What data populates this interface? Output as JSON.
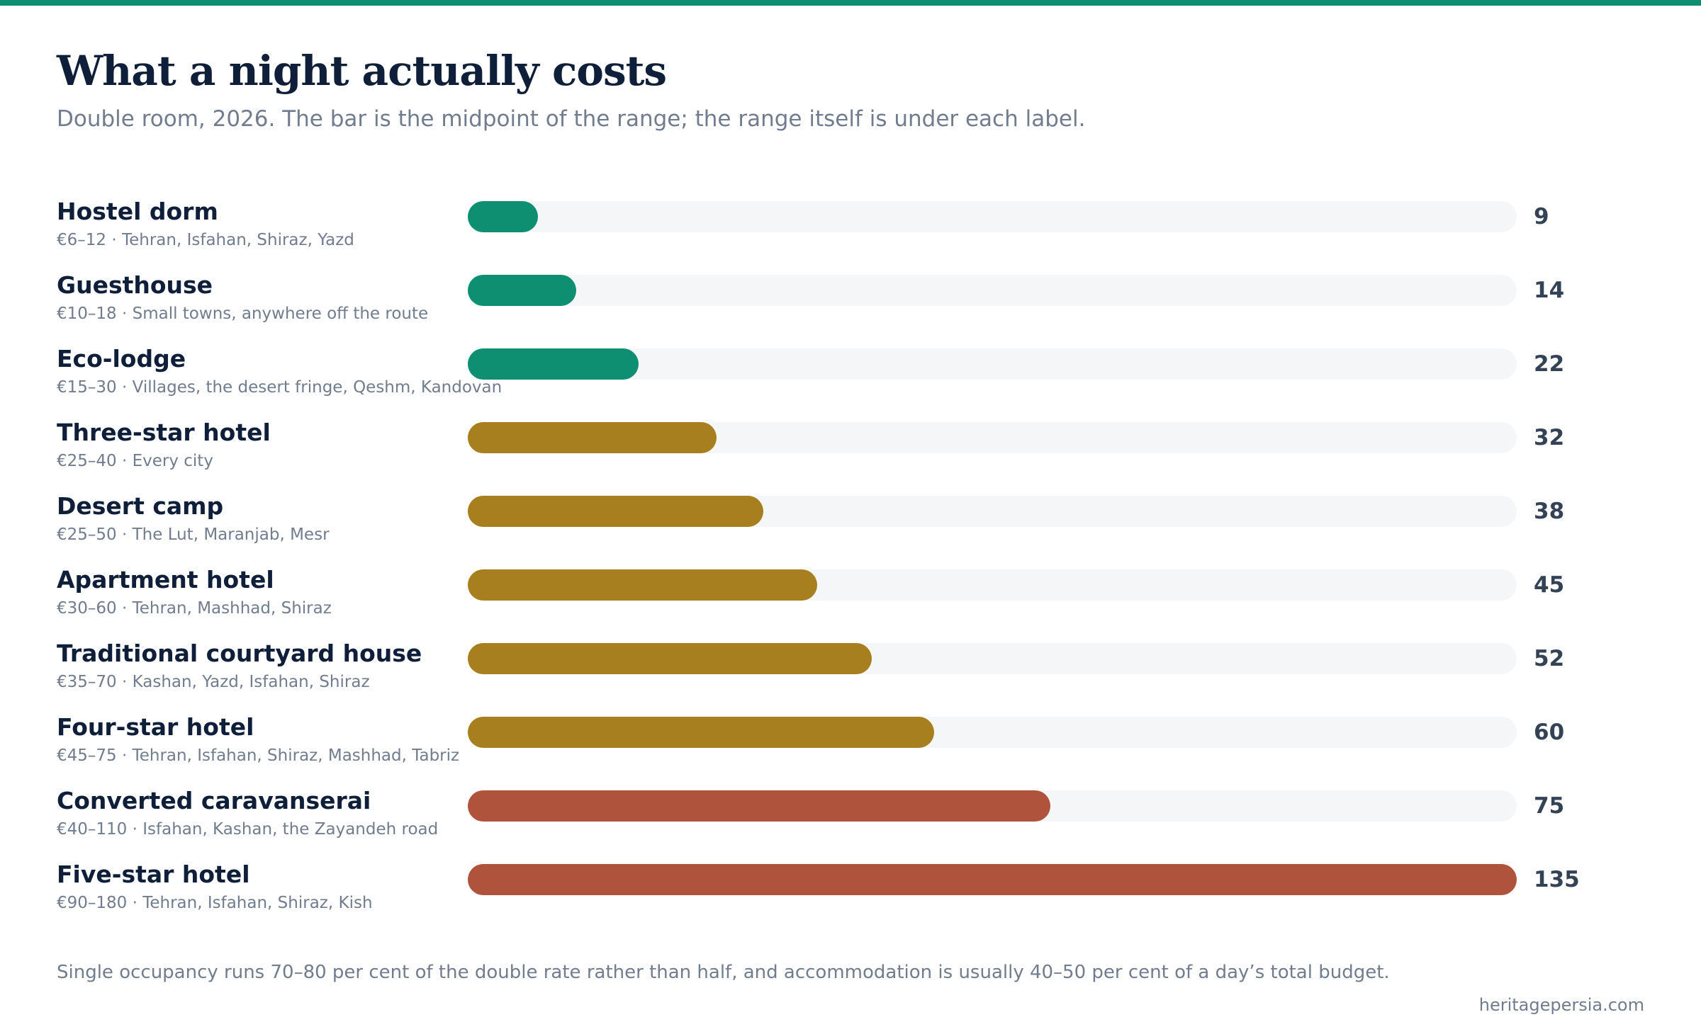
{
  "title": "What a night actually costs",
  "subtitle": "Double room, 2026. The bar is the midpoint of the range; the range itself is under each label.",
  "footnote": "Single occupancy runs 70–80 per cent of the double rate rather than half, and accommodation is usually 40–50 per cent of a day’s total budget.",
  "source": "heritagepersia.com",
  "colors": {
    "accent": "#0f8f72",
    "budget": "#0f8f72",
    "mid": "#a87f1f",
    "luxury": "#b0533c",
    "track": "#f4f6f8",
    "title": "#0f1f3a",
    "muted": "#717c8e"
  },
  "chart_data": {
    "type": "bar",
    "orientation": "horizontal",
    "xlim": [
      0,
      135
    ],
    "grid": false,
    "categories": [
      "Hostel dorm",
      "Guesthouse",
      "Eco-lodge",
      "Three-star hotel",
      "Desert camp",
      "Apartment hotel",
      "Traditional courtyard house",
      "Four-star hotel",
      "Converted caravanserai",
      "Five-star hotel"
    ],
    "notes": [
      "€6–12 · Tehran, Isfahan, Shiraz, Yazd",
      "€10–18 · Small towns, anywhere off the route",
      "€15–30 · Villages, the desert fringe, Qeshm, Kandovan",
      "€25–40 · Every city",
      "€25–50 · The Lut, Maranjab, Mesr",
      "€30–60 · Tehran, Mashhad, Shiraz",
      "€35–70 · Kashan, Yazd, Isfahan, Shiraz",
      "€45–75 · Tehran, Isfahan, Shiraz, Mashhad, Tabriz",
      "€40–110 · Isfahan, Kashan, the Zayandeh road",
      "€90–180 · Tehran, Isfahan, Shiraz, Kish"
    ],
    "values": [
      9,
      14,
      22,
      32,
      38,
      45,
      52,
      60,
      75,
      135
    ],
    "color_groups": [
      "budget",
      "budget",
      "budget",
      "mid",
      "mid",
      "mid",
      "mid",
      "mid",
      "luxury",
      "luxury"
    ]
  }
}
